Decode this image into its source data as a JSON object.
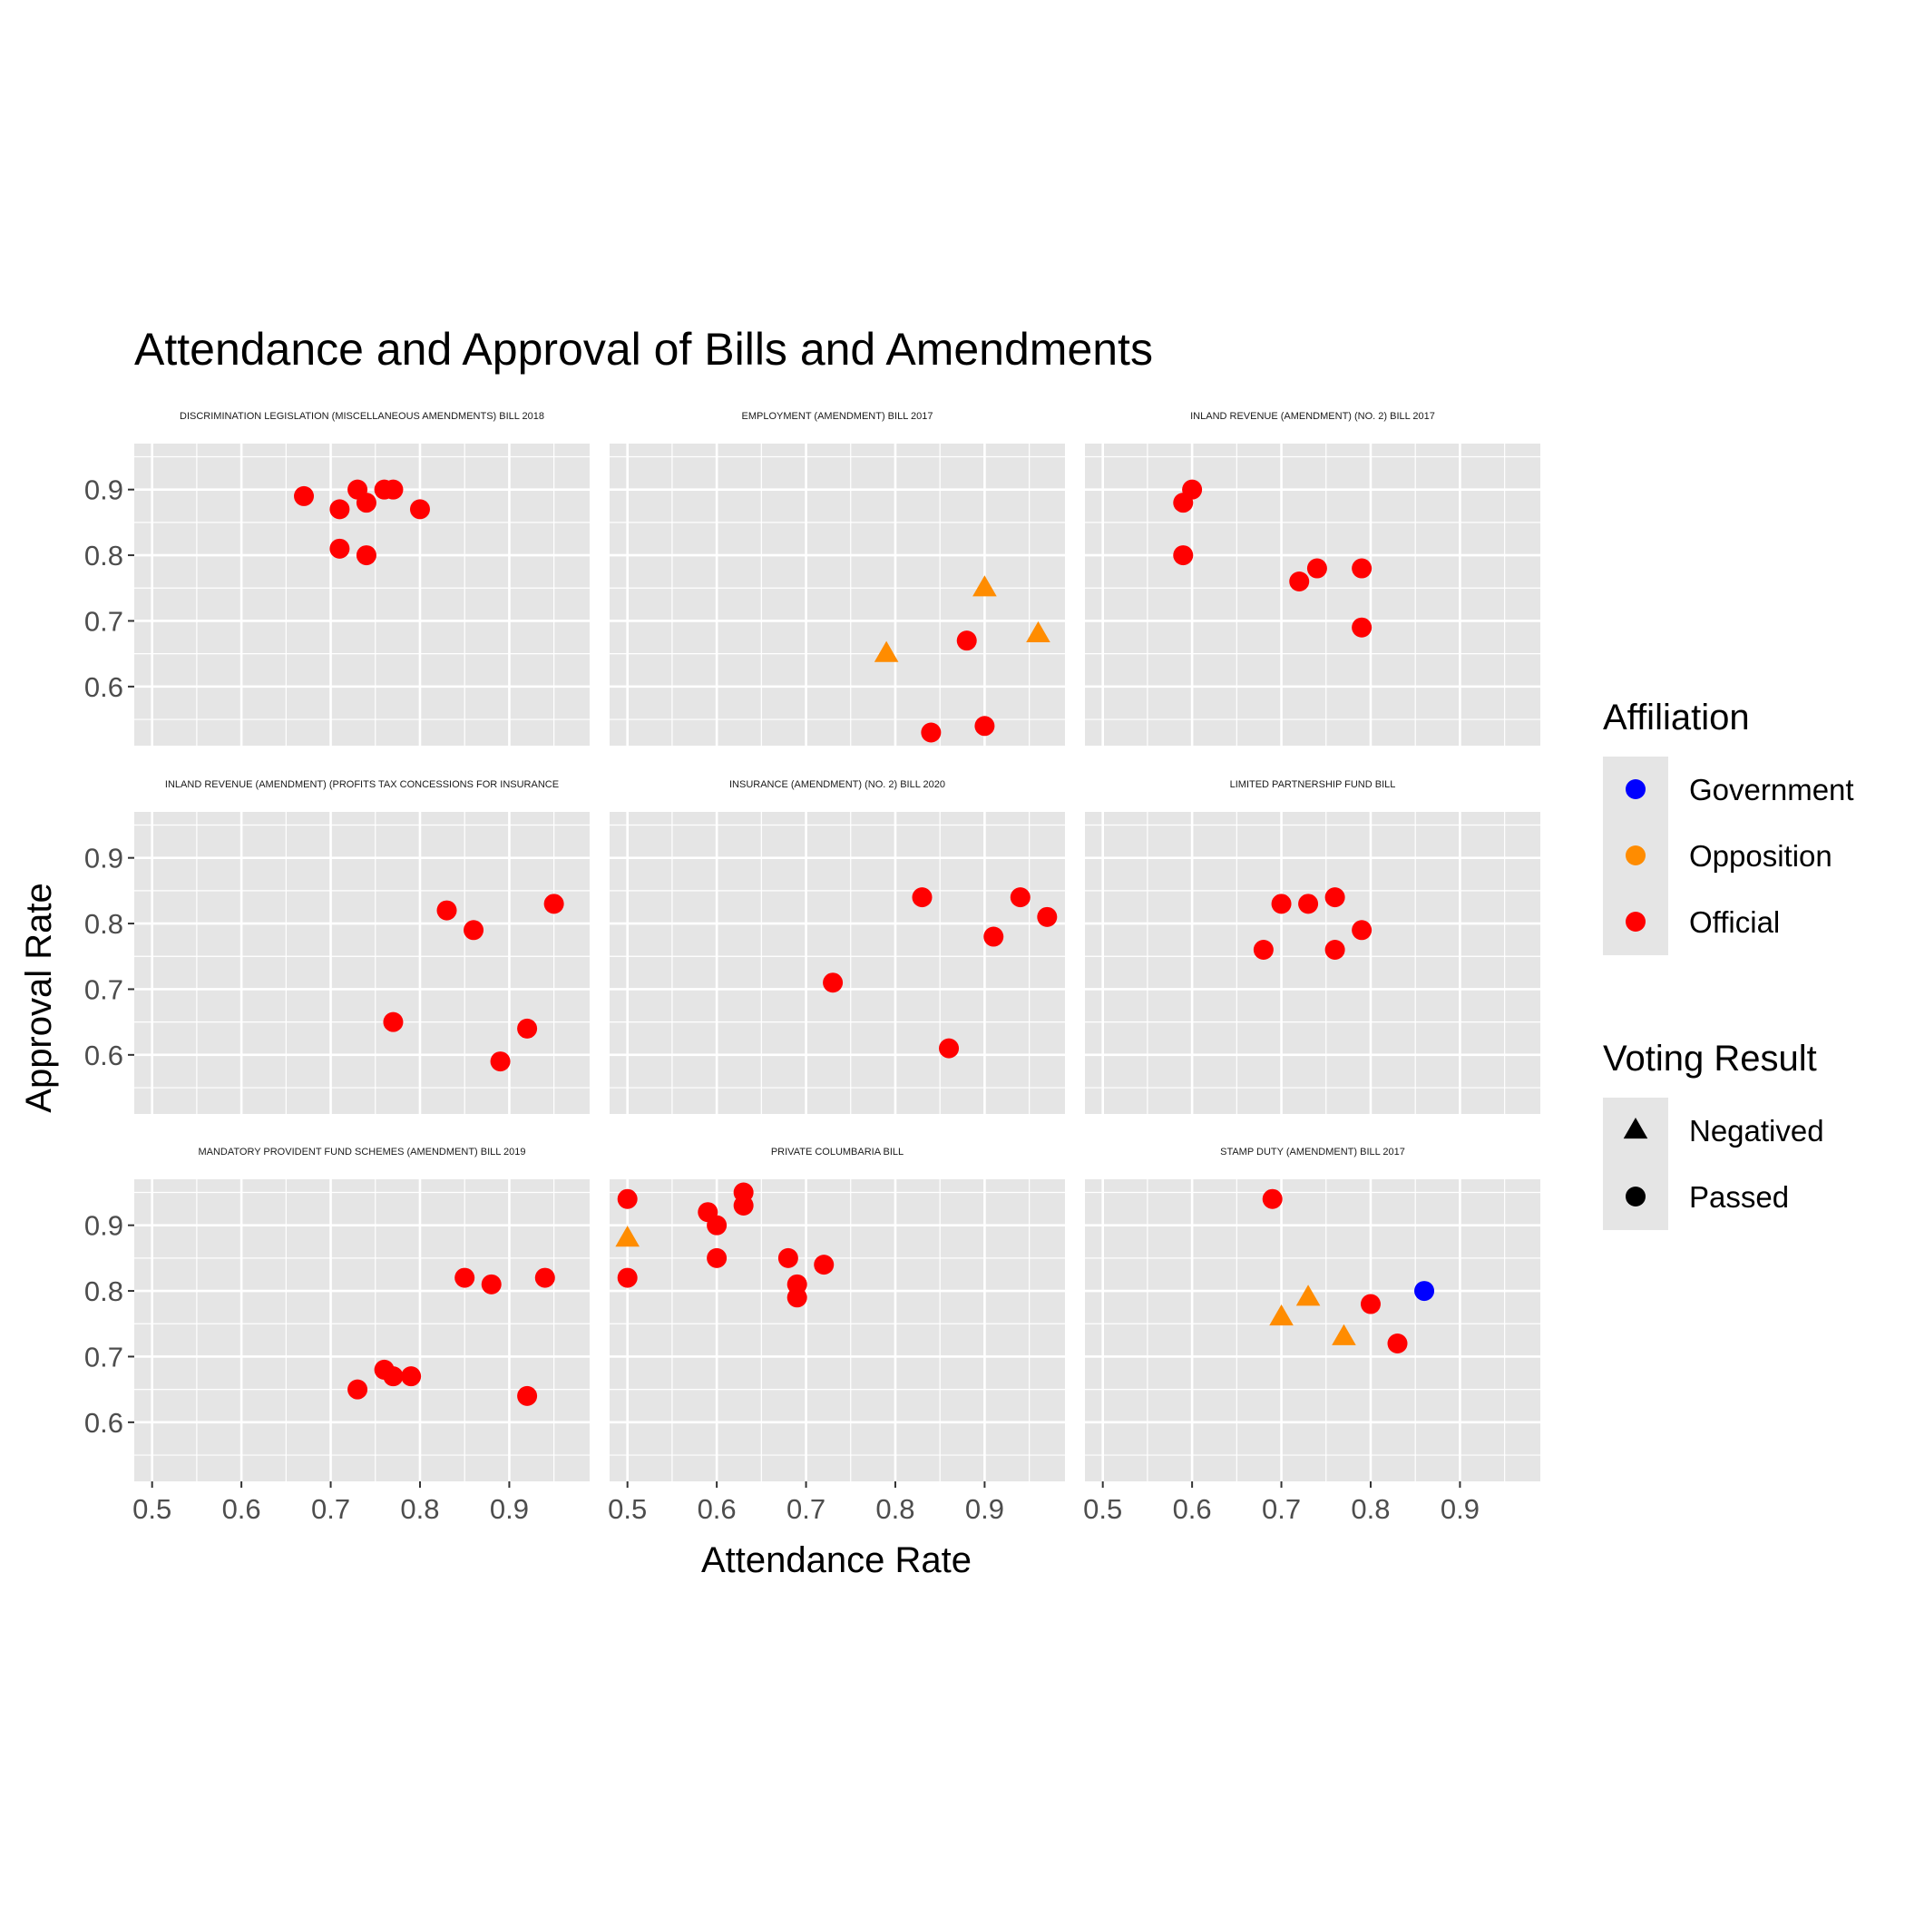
{
  "chart_data": {
    "type": "scatter",
    "title": "Attendance and Approval of Bills and Amendments",
    "xlabel": "Attendance Rate",
    "ylabel": "Approval Rate",
    "xlim": [
      0.48,
      0.99
    ],
    "ylim": [
      0.51,
      0.97
    ],
    "x_ticks": [
      "0.5",
      "0.6",
      "0.7",
      "0.8",
      "0.9"
    ],
    "y_ticks": [
      "0.6",
      "0.7",
      "0.8",
      "0.9"
    ],
    "grid": true,
    "legend_placement": "right",
    "colors": {
      "Government": "#0000ff",
      "Opposition": "#ff8c00",
      "Official": "#ff0000",
      "panel_bg": "#e5e5e5",
      "grid": "#ffffff"
    },
    "legends": [
      {
        "title": "Affiliation",
        "entries": [
          {
            "label": "Government",
            "shape": "circle",
            "color": "#0000ff"
          },
          {
            "label": "Opposition",
            "shape": "circle",
            "color": "#ff8c00"
          },
          {
            "label": "Official",
            "shape": "circle",
            "color": "#ff0000"
          }
        ]
      },
      {
        "title": "Voting Result",
        "entries": [
          {
            "label": "Negatived",
            "shape": "triangle",
            "color": "#000000"
          },
          {
            "label": "Passed",
            "shape": "circle",
            "color": "#000000"
          }
        ]
      }
    ],
    "facets": [
      {
        "title": "DISCRIMINATION LEGISLATION (MISCELLANEOUS AMENDMENTS) BILL 2018",
        "points": [
          {
            "x": 0.67,
            "y": 0.89,
            "affiliation": "Official",
            "result": "Passed"
          },
          {
            "x": 0.71,
            "y": 0.87,
            "affiliation": "Official",
            "result": "Passed"
          },
          {
            "x": 0.73,
            "y": 0.9,
            "affiliation": "Official",
            "result": "Passed"
          },
          {
            "x": 0.74,
            "y": 0.88,
            "affiliation": "Official",
            "result": "Passed"
          },
          {
            "x": 0.76,
            "y": 0.9,
            "affiliation": "Official",
            "result": "Passed"
          },
          {
            "x": 0.77,
            "y": 0.9,
            "affiliation": "Official",
            "result": "Passed"
          },
          {
            "x": 0.8,
            "y": 0.87,
            "affiliation": "Official",
            "result": "Passed"
          },
          {
            "x": 0.71,
            "y": 0.81,
            "affiliation": "Official",
            "result": "Passed"
          },
          {
            "x": 0.74,
            "y": 0.8,
            "affiliation": "Official",
            "result": "Passed"
          }
        ]
      },
      {
        "title": "EMPLOYMENT (AMENDMENT) BILL 2017",
        "points": [
          {
            "x": 0.9,
            "y": 0.75,
            "affiliation": "Opposition",
            "result": "Negatived"
          },
          {
            "x": 0.79,
            "y": 0.65,
            "affiliation": "Opposition",
            "result": "Negatived"
          },
          {
            "x": 0.96,
            "y": 0.68,
            "affiliation": "Opposition",
            "result": "Negatived"
          },
          {
            "x": 0.88,
            "y": 0.67,
            "affiliation": "Official",
            "result": "Passed"
          },
          {
            "x": 0.84,
            "y": 0.53,
            "affiliation": "Official",
            "result": "Passed"
          },
          {
            "x": 0.9,
            "y": 0.54,
            "affiliation": "Official",
            "result": "Passed"
          }
        ]
      },
      {
        "title": "INLAND REVENUE (AMENDMENT) (NO. 2) BILL 2017",
        "points": [
          {
            "x": 0.6,
            "y": 0.9,
            "affiliation": "Official",
            "result": "Passed"
          },
          {
            "x": 0.59,
            "y": 0.88,
            "affiliation": "Official",
            "result": "Passed"
          },
          {
            "x": 0.59,
            "y": 0.8,
            "affiliation": "Official",
            "result": "Passed"
          },
          {
            "x": 0.74,
            "y": 0.78,
            "affiliation": "Official",
            "result": "Passed"
          },
          {
            "x": 0.72,
            "y": 0.76,
            "affiliation": "Official",
            "result": "Passed"
          },
          {
            "x": 0.79,
            "y": 0.78,
            "affiliation": "Official",
            "result": "Passed"
          },
          {
            "x": 0.79,
            "y": 0.69,
            "affiliation": "Official",
            "result": "Passed"
          }
        ]
      },
      {
        "title": "INLAND REVENUE (AMENDMENT) (PROFITS TAX CONCESSIONS FOR INSURANCE",
        "points": [
          {
            "x": 0.83,
            "y": 0.82,
            "affiliation": "Official",
            "result": "Passed"
          },
          {
            "x": 0.86,
            "y": 0.79,
            "affiliation": "Official",
            "result": "Passed"
          },
          {
            "x": 0.95,
            "y": 0.83,
            "affiliation": "Official",
            "result": "Passed"
          },
          {
            "x": 0.77,
            "y": 0.65,
            "affiliation": "Official",
            "result": "Passed"
          },
          {
            "x": 0.92,
            "y": 0.64,
            "affiliation": "Official",
            "result": "Passed"
          },
          {
            "x": 0.89,
            "y": 0.59,
            "affiliation": "Official",
            "result": "Passed"
          }
        ]
      },
      {
        "title": "INSURANCE (AMENDMENT) (NO. 2) BILL 2020",
        "points": [
          {
            "x": 0.83,
            "y": 0.84,
            "affiliation": "Official",
            "result": "Passed"
          },
          {
            "x": 0.94,
            "y": 0.84,
            "affiliation": "Official",
            "result": "Passed"
          },
          {
            "x": 0.97,
            "y": 0.81,
            "affiliation": "Official",
            "result": "Passed"
          },
          {
            "x": 0.91,
            "y": 0.78,
            "affiliation": "Official",
            "result": "Passed"
          },
          {
            "x": 0.73,
            "y": 0.71,
            "affiliation": "Official",
            "result": "Passed"
          },
          {
            "x": 0.86,
            "y": 0.61,
            "affiliation": "Official",
            "result": "Passed"
          }
        ]
      },
      {
        "title": "LIMITED PARTNERSHIP FUND BILL",
        "points": [
          {
            "x": 0.7,
            "y": 0.83,
            "affiliation": "Official",
            "result": "Passed"
          },
          {
            "x": 0.73,
            "y": 0.83,
            "affiliation": "Official",
            "result": "Passed"
          },
          {
            "x": 0.76,
            "y": 0.84,
            "affiliation": "Official",
            "result": "Passed"
          },
          {
            "x": 0.79,
            "y": 0.79,
            "affiliation": "Official",
            "result": "Passed"
          },
          {
            "x": 0.68,
            "y": 0.76,
            "affiliation": "Official",
            "result": "Passed"
          },
          {
            "x": 0.76,
            "y": 0.76,
            "affiliation": "Official",
            "result": "Passed"
          }
        ]
      },
      {
        "title": "MANDATORY PROVIDENT FUND SCHEMES (AMENDMENT) BILL 2019",
        "points": [
          {
            "x": 0.85,
            "y": 0.82,
            "affiliation": "Official",
            "result": "Passed"
          },
          {
            "x": 0.88,
            "y": 0.81,
            "affiliation": "Official",
            "result": "Passed"
          },
          {
            "x": 0.94,
            "y": 0.82,
            "affiliation": "Official",
            "result": "Passed"
          },
          {
            "x": 0.76,
            "y": 0.68,
            "affiliation": "Official",
            "result": "Passed"
          },
          {
            "x": 0.77,
            "y": 0.67,
            "affiliation": "Official",
            "result": "Passed"
          },
          {
            "x": 0.79,
            "y": 0.67,
            "affiliation": "Official",
            "result": "Passed"
          },
          {
            "x": 0.73,
            "y": 0.65,
            "affiliation": "Official",
            "result": "Passed"
          },
          {
            "x": 0.92,
            "y": 0.64,
            "affiliation": "Official",
            "result": "Passed"
          }
        ]
      },
      {
        "title": "PRIVATE COLUMBARIA BILL",
        "points": [
          {
            "x": 0.5,
            "y": 0.94,
            "affiliation": "Official",
            "result": "Passed"
          },
          {
            "x": 0.5,
            "y": 0.88,
            "affiliation": "Opposition",
            "result": "Negatived"
          },
          {
            "x": 0.5,
            "y": 0.82,
            "affiliation": "Official",
            "result": "Passed"
          },
          {
            "x": 0.59,
            "y": 0.92,
            "affiliation": "Official",
            "result": "Passed"
          },
          {
            "x": 0.6,
            "y": 0.9,
            "affiliation": "Official",
            "result": "Passed"
          },
          {
            "x": 0.63,
            "y": 0.95,
            "affiliation": "Official",
            "result": "Passed"
          },
          {
            "x": 0.63,
            "y": 0.93,
            "affiliation": "Official",
            "result": "Passed"
          },
          {
            "x": 0.6,
            "y": 0.85,
            "affiliation": "Official",
            "result": "Passed"
          },
          {
            "x": 0.68,
            "y": 0.85,
            "affiliation": "Official",
            "result": "Passed"
          },
          {
            "x": 0.72,
            "y": 0.84,
            "affiliation": "Official",
            "result": "Passed"
          },
          {
            "x": 0.69,
            "y": 0.81,
            "affiliation": "Official",
            "result": "Passed"
          },
          {
            "x": 0.69,
            "y": 0.79,
            "affiliation": "Official",
            "result": "Passed"
          }
        ]
      },
      {
        "title": "STAMP DUTY (AMENDMENT) BILL 2017",
        "points": [
          {
            "x": 0.69,
            "y": 0.94,
            "affiliation": "Official",
            "result": "Passed"
          },
          {
            "x": 0.86,
            "y": 0.8,
            "affiliation": "Government",
            "result": "Passed"
          },
          {
            "x": 0.73,
            "y": 0.79,
            "affiliation": "Opposition",
            "result": "Negatived"
          },
          {
            "x": 0.7,
            "y": 0.76,
            "affiliation": "Opposition",
            "result": "Negatived"
          },
          {
            "x": 0.77,
            "y": 0.73,
            "affiliation": "Opposition",
            "result": "Negatived"
          },
          {
            "x": 0.8,
            "y": 0.78,
            "affiliation": "Official",
            "result": "Passed"
          },
          {
            "x": 0.83,
            "y": 0.72,
            "affiliation": "Official",
            "result": "Passed"
          }
        ]
      }
    ]
  }
}
